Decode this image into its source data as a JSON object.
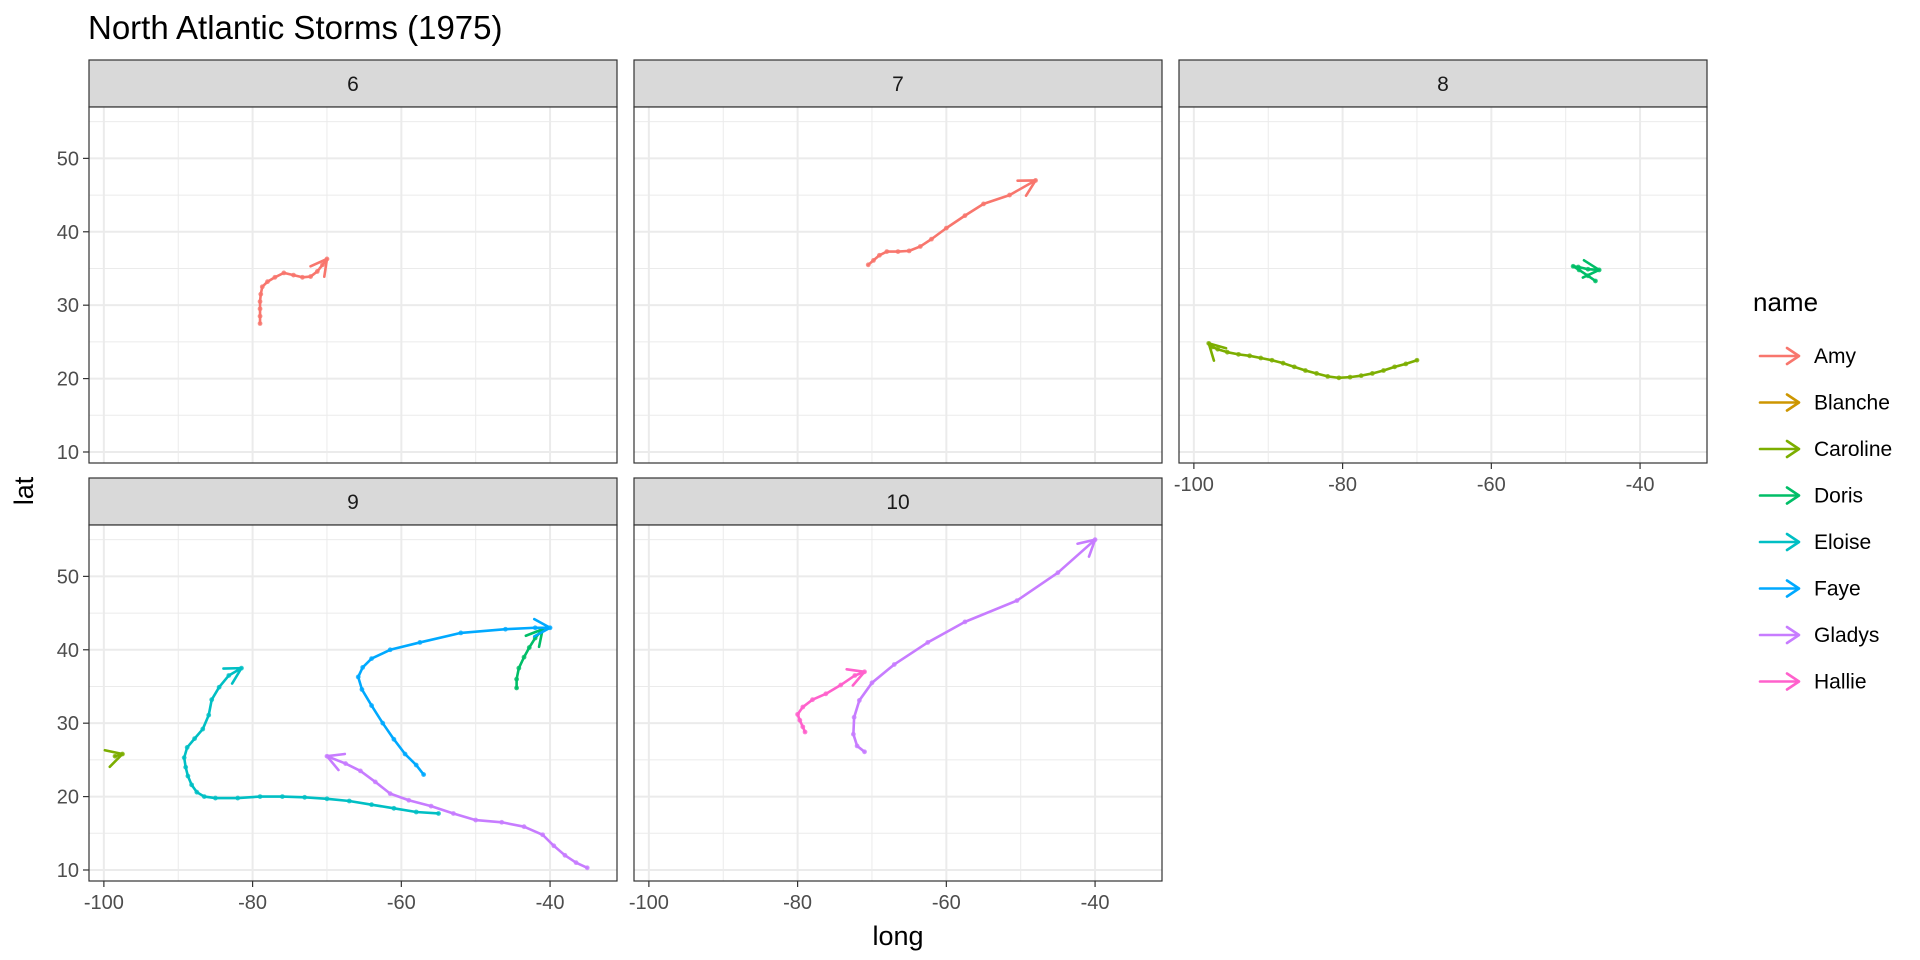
{
  "chart_data": {
    "type": "line",
    "title": "North Atlantic Storms (1975)",
    "xlabel": "long",
    "ylabel": "lat",
    "xlim": [
      -102,
      -31
    ],
    "ylim": [
      8.5,
      57
    ],
    "xticks": [
      -100,
      -80,
      -60,
      -40
    ],
    "yticks": [
      10,
      20,
      30,
      40,
      50
    ],
    "facet_variable": "month",
    "grid": true,
    "legend_title": "name",
    "legend_position": "right",
    "facets": [
      {
        "label": "6",
        "series": [
          {
            "name": "Amy",
            "points": [
              [
                -79,
                27.5
              ],
              [
                -79,
                28.5
              ],
              [
                -79,
                29.5
              ],
              [
                -79,
                30.5
              ],
              [
                -78.9,
                31.5
              ],
              [
                -78.7,
                32.5
              ],
              [
                -78,
                33.2
              ],
              [
                -77,
                33.8
              ],
              [
                -75.8,
                34.4
              ],
              [
                -74.5,
                34.1
              ],
              [
                -73.3,
                33.8
              ],
              [
                -72.2,
                33.9
              ],
              [
                -71.3,
                34.6
              ],
              [
                -70.6,
                35.5
              ],
              [
                -70,
                36.3
              ]
            ]
          }
        ]
      },
      {
        "label": "7",
        "series": [
          {
            "name": "Amy",
            "points": [
              [
                -70.5,
                35.5
              ],
              [
                -69.8,
                36.1
              ],
              [
                -69,
                36.8
              ],
              [
                -68,
                37.3
              ],
              [
                -66.5,
                37.3
              ],
              [
                -65,
                37.4
              ],
              [
                -63.5,
                38
              ],
              [
                -62,
                39
              ],
              [
                -60,
                40.5
              ],
              [
                -57.5,
                42.2
              ],
              [
                -55,
                43.8
              ],
              [
                -51.5,
                45
              ],
              [
                -48,
                47
              ]
            ]
          }
        ]
      },
      {
        "label": "8",
        "series": [
          {
            "name": "Caroline",
            "points": [
              [
                -70,
                22.5
              ],
              [
                -71.5,
                22
              ],
              [
                -73,
                21.6
              ],
              [
                -74.5,
                21.1
              ],
              [
                -76,
                20.7
              ],
              [
                -77.5,
                20.4
              ],
              [
                -79,
                20.2
              ],
              [
                -80.5,
                20.1
              ],
              [
                -82,
                20.3
              ],
              [
                -83.5,
                20.7
              ],
              [
                -85,
                21.1
              ],
              [
                -86.5,
                21.6
              ],
              [
                -88,
                22.1
              ],
              [
                -89.5,
                22.5
              ],
              [
                -91,
                22.8
              ],
              [
                -92.5,
                23.1
              ],
              [
                -94,
                23.3
              ],
              [
                -95.5,
                23.6
              ],
              [
                -96.8,
                24
              ],
              [
                -97.5,
                24.3
              ],
              [
                -98,
                24.8
              ]
            ]
          },
          {
            "name": "Doris",
            "points": [
              [
                -46,
                33.3
              ],
              [
                -47,
                34
              ],
              [
                -48.2,
                34.8
              ],
              [
                -49,
                35.3
              ],
              [
                -48.3,
                35.2
              ],
              [
                -47,
                34.9
              ],
              [
                -45.5,
                34.8
              ]
            ]
          }
        ]
      },
      {
        "label": "9",
        "series": [
          {
            "name": "Caroline",
            "points": [
              [
                -98.5,
                25.5
              ],
              [
                -97.5,
                25.8
              ]
            ]
          },
          {
            "name": "Doris",
            "points": [
              [
                -44.5,
                34.8
              ],
              [
                -44.5,
                36
              ],
              [
                -44.2,
                37.5
              ],
              [
                -43.5,
                39
              ],
              [
                -42.8,
                40.3
              ],
              [
                -42,
                41.6
              ],
              [
                -41,
                42.8
              ]
            ]
          },
          {
            "name": "Eloise",
            "points": [
              [
                -55,
                17.7
              ],
              [
                -58,
                17.9
              ],
              [
                -61,
                18.4
              ],
              [
                -64,
                18.9
              ],
              [
                -67,
                19.4
              ],
              [
                -70,
                19.7
              ],
              [
                -73,
                19.9
              ],
              [
                -76,
                20
              ],
              [
                -79,
                20
              ],
              [
                -82,
                19.8
              ],
              [
                -85,
                19.8
              ],
              [
                -86.5,
                20
              ],
              [
                -87.5,
                20.6
              ],
              [
                -88.2,
                21.6
              ],
              [
                -88.7,
                22.8
              ],
              [
                -89,
                24
              ],
              [
                -89.2,
                25.3
              ],
              [
                -88.8,
                26.7
              ],
              [
                -87.8,
                27.9
              ],
              [
                -86.7,
                29.2
              ],
              [
                -85.9,
                31.1
              ],
              [
                -85.5,
                33.2
              ],
              [
                -84.5,
                34.9
              ],
              [
                -83.2,
                36.5
              ],
              [
                -81.5,
                37.5
              ]
            ]
          },
          {
            "name": "Faye",
            "points": [
              [
                -57,
                23
              ],
              [
                -58,
                24.3
              ],
              [
                -59.5,
                25.8
              ],
              [
                -61,
                27.8
              ],
              [
                -62.5,
                30
              ],
              [
                -64,
                32.4
              ],
              [
                -65.3,
                34.6
              ],
              [
                -65.8,
                36.3
              ],
              [
                -65.2,
                37.6
              ],
              [
                -64,
                38.8
              ],
              [
                -61.5,
                40
              ],
              [
                -57.5,
                41
              ],
              [
                -52,
                42.3
              ],
              [
                -46,
                42.8
              ],
              [
                -42,
                43
              ],
              [
                -40,
                43
              ]
            ]
          },
          {
            "name": "Gladys",
            "points": [
              [
                -35,
                10.3
              ],
              [
                -36.5,
                11
              ],
              [
                -38,
                12
              ],
              [
                -39.5,
                13.3
              ],
              [
                -41,
                14.8
              ],
              [
                -43.5,
                15.9
              ],
              [
                -46.5,
                16.5
              ],
              [
                -50,
                16.8
              ],
              [
                -53,
                17.7
              ],
              [
                -56,
                18.7
              ],
              [
                -59,
                19.5
              ],
              [
                -61.5,
                20.4
              ],
              [
                -63.5,
                22
              ],
              [
                -65.5,
                23.5
              ],
              [
                -67.5,
                24.5
              ],
              [
                -70,
                25.5
              ]
            ]
          }
        ]
      },
      {
        "label": "10",
        "series": [
          {
            "name": "Gladys",
            "points": [
              [
                -71,
                26.1
              ],
              [
                -72,
                26.9
              ],
              [
                -72.5,
                28.5
              ],
              [
                -72.4,
                30.8
              ],
              [
                -71.7,
                33.1
              ],
              [
                -70,
                35.5
              ],
              [
                -67,
                38
              ],
              [
                -62.5,
                41
              ],
              [
                -57.5,
                43.8
              ],
              [
                -50.5,
                46.7
              ],
              [
                -45,
                50.5
              ],
              [
                -40,
                55
              ]
            ]
          },
          {
            "name": "Hallie",
            "points": [
              [
                -79,
                28.8
              ],
              [
                -79.3,
                29.5
              ],
              [
                -79.7,
                30.4
              ],
              [
                -80,
                31.2
              ],
              [
                -79.3,
                32.2
              ],
              [
                -78,
                33.2
              ],
              [
                -76.2,
                34
              ],
              [
                -74.2,
                35.2
              ],
              [
                -72.3,
                36.5
              ],
              [
                -71,
                37
              ]
            ]
          }
        ]
      }
    ],
    "legend": [
      {
        "name": "Amy",
        "color": "#F8766D"
      },
      {
        "name": "Blanche",
        "color": "#CD9600"
      },
      {
        "name": "Caroline",
        "color": "#7CAE00"
      },
      {
        "name": "Doris",
        "color": "#00BE67"
      },
      {
        "name": "Eloise",
        "color": "#00BFC4"
      },
      {
        "name": "Faye",
        "color": "#00A9FF"
      },
      {
        "name": "Gladys",
        "color": "#C77CFF"
      },
      {
        "name": "Hallie",
        "color": "#FF61CC"
      }
    ]
  }
}
